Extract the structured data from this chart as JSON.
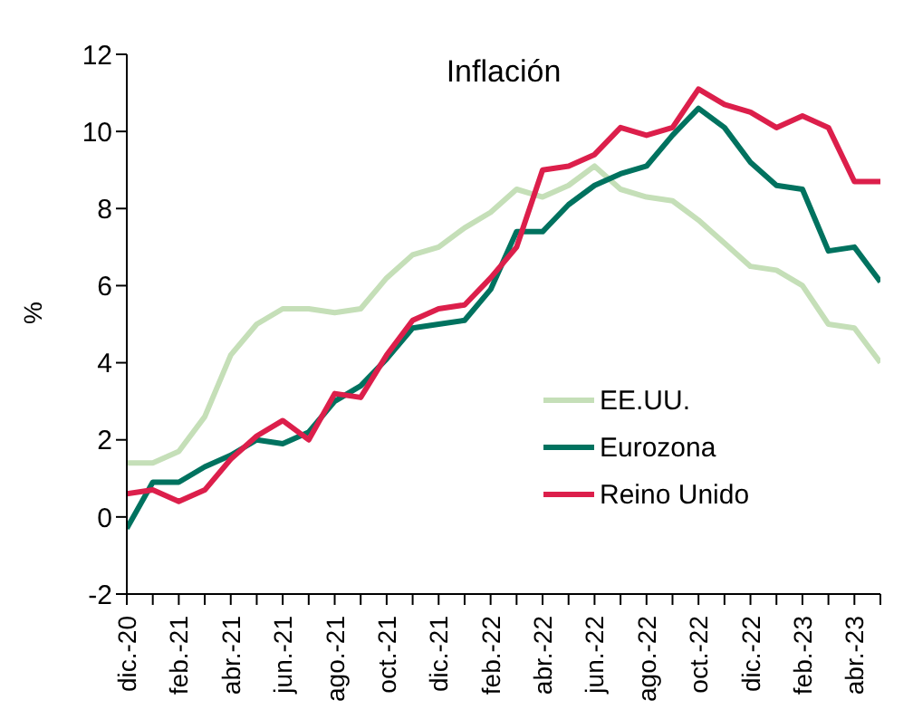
{
  "chart_data": {
    "type": "line",
    "title": "Inflación",
    "ylabel": "%",
    "categories": [
      "dic.-20",
      null,
      "feb.-21",
      null,
      "abr.-21",
      null,
      "jun.-21",
      null,
      "ago.-21",
      null,
      "oct.-21",
      null,
      "dic.-21",
      null,
      "feb.-22",
      null,
      "abr.-22",
      null,
      "jun.-22",
      null,
      "ago.-22",
      null,
      "oct.-22",
      null,
      "dic.-22",
      null,
      "feb.-23",
      null,
      "abr.-23",
      null
    ],
    "series": [
      {
        "name": "EE.UU.",
        "color": "#c5dfb8",
        "values": [
          1.4,
          1.4,
          1.7,
          2.6,
          4.2,
          5.0,
          5.4,
          5.4,
          5.3,
          5.4,
          6.2,
          6.8,
          7.0,
          7.5,
          7.9,
          8.5,
          8.3,
          8.6,
          9.1,
          8.5,
          8.3,
          8.2,
          7.7,
          7.1,
          6.5,
          6.4,
          6.0,
          5.0,
          4.9,
          4.0
        ]
      },
      {
        "name": "Eurozona",
        "color": "#00725f",
        "values": [
          -0.3,
          0.9,
          0.9,
          1.3,
          1.6,
          2.0,
          1.9,
          2.2,
          3.0,
          3.4,
          4.1,
          4.9,
          5.0,
          5.1,
          5.9,
          7.4,
          7.4,
          8.1,
          8.6,
          8.9,
          9.1,
          9.9,
          10.6,
          10.1,
          9.2,
          8.6,
          8.5,
          6.9,
          7.0,
          6.1
        ]
      },
      {
        "name": "Reino Unido",
        "color": "#dc1f4b",
        "values": [
          0.6,
          0.7,
          0.4,
          0.7,
          1.5,
          2.1,
          2.5,
          2.0,
          3.2,
          3.1,
          4.2,
          5.1,
          5.4,
          5.5,
          6.2,
          7.0,
          9.0,
          9.1,
          9.4,
          10.1,
          9.9,
          10.1,
          11.1,
          10.7,
          10.5,
          10.1,
          10.4,
          10.1,
          8.7,
          8.7
        ]
      }
    ],
    "ylim": [
      -2,
      12
    ],
    "yticks": [
      -2,
      0,
      2,
      4,
      6,
      8,
      10,
      12
    ],
    "grid": false,
    "legend": "bottom right",
    "marker": "none",
    "line_style": "solid"
  }
}
